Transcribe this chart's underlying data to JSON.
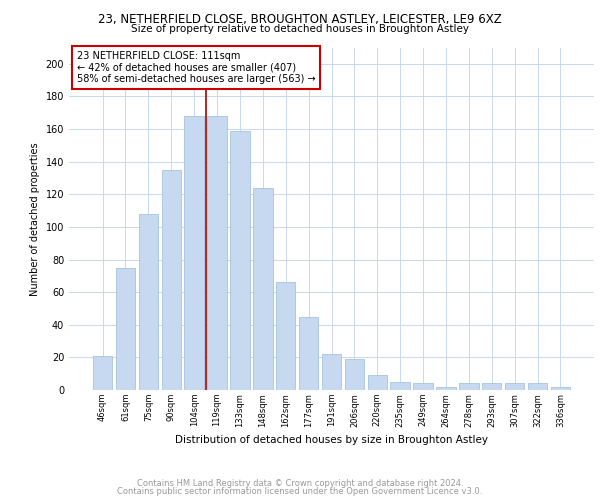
{
  "title1": "23, NETHERFIELD CLOSE, BROUGHTON ASTLEY, LEICESTER, LE9 6XZ",
  "title2": "Size of property relative to detached houses in Broughton Astley",
  "xlabel": "Distribution of detached houses by size in Broughton Astley",
  "ylabel": "Number of detached properties",
  "categories": [
    "46sqm",
    "61sqm",
    "75sqm",
    "90sqm",
    "104sqm",
    "119sqm",
    "133sqm",
    "148sqm",
    "162sqm",
    "177sqm",
    "191sqm",
    "206sqm",
    "220sqm",
    "235sqm",
    "249sqm",
    "264sqm",
    "278sqm",
    "293sqm",
    "307sqm",
    "322sqm",
    "336sqm"
  ],
  "values": [
    21,
    75,
    108,
    135,
    168,
    168,
    159,
    124,
    66,
    45,
    22,
    19,
    9,
    5,
    4,
    2,
    4,
    4,
    4,
    4,
    2
  ],
  "bar_color": "#c6d9f0",
  "bar_edge_color": "#9bbcd8",
  "vline_x": 4.5,
  "vline_color": "#aa0000",
  "annotation_line1": "23 NETHERFIELD CLOSE: 111sqm",
  "annotation_line2": "← 42% of detached houses are smaller (407)",
  "annotation_line3": "58% of semi-detached houses are larger (563) →",
  "annotation_box_color": "#ffffff",
  "annotation_box_edge": "#cc0000",
  "footer1": "Contains HM Land Registry data © Crown copyright and database right 2024.",
  "footer2": "Contains public sector information licensed under the Open Government Licence v3.0.",
  "bg_color": "#ffffff",
  "grid_color": "#c8d8ee",
  "ylim": [
    0,
    210
  ],
  "yticks": [
    0,
    20,
    40,
    60,
    80,
    100,
    120,
    140,
    160,
    180,
    200
  ]
}
